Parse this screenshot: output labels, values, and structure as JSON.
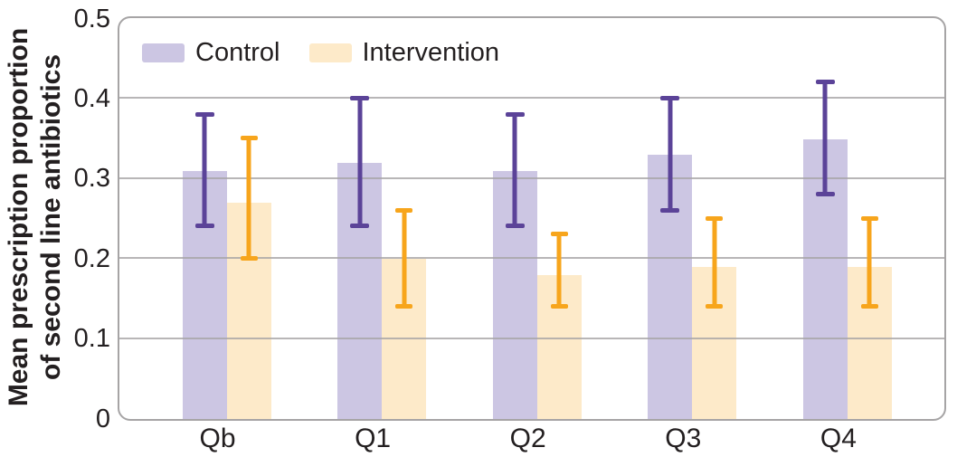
{
  "chart_data": {
    "type": "bar",
    "title": "",
    "ylabel": "Mean prescription proportion of second line antibiotics",
    "ylabel_lines": [
      "Mean prescription proportion",
      "of second line antibiotics"
    ],
    "xlabel": "",
    "categories": [
      "Qb",
      "Q1",
      "Q2",
      "Q3",
      "Q4"
    ],
    "series": [
      {
        "name": "Control",
        "color": "#ccc6e3",
        "error_color": "#5b4398",
        "values": [
          0.31,
          0.32,
          0.31,
          0.33,
          0.35
        ],
        "error_low": [
          0.24,
          0.24,
          0.24,
          0.26,
          0.28
        ],
        "error_high": [
          0.38,
          0.4,
          0.38,
          0.4,
          0.42
        ]
      },
      {
        "name": "Intervention",
        "color": "#fdeac9",
        "error_color": "#f7a51c",
        "values": [
          0.27,
          0.2,
          0.18,
          0.19,
          0.19
        ],
        "error_low": [
          0.2,
          0.14,
          0.14,
          0.14,
          0.14
        ],
        "error_high": [
          0.35,
          0.26,
          0.23,
          0.25,
          0.25
        ]
      }
    ],
    "ylim": [
      0,
      0.5
    ],
    "yticks": [
      0,
      0.1,
      0.2,
      0.3,
      0.4,
      0.5
    ],
    "ytick_labels": [
      "0",
      "0.1",
      "0.2",
      "0.3",
      "0.4",
      "0.5"
    ],
    "grid": true,
    "legend_position": "top-left",
    "frame_color": "#a6a4a5",
    "text_color": "#231f20"
  }
}
